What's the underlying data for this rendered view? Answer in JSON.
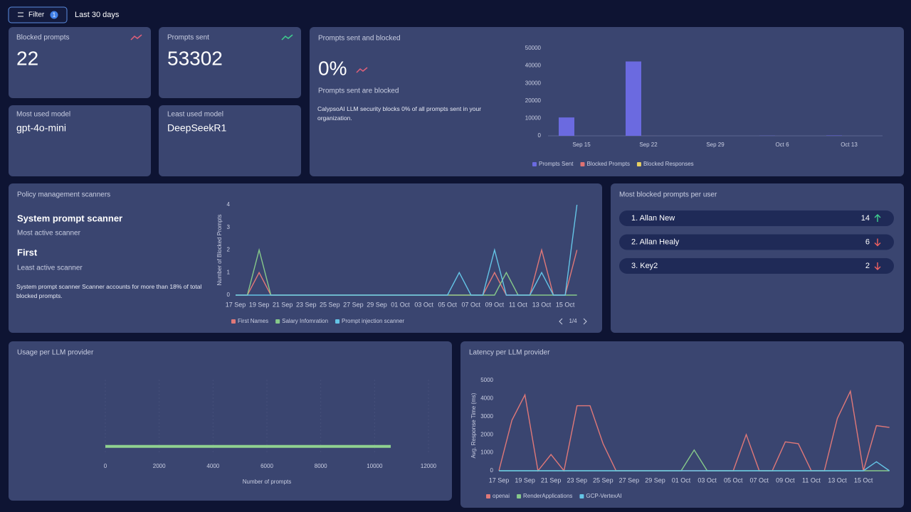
{
  "header": {
    "filter": "Filter",
    "filter_count": 1,
    "range": "Last 30 days"
  },
  "stats": [
    {
      "label": "Blocked prompts",
      "value": 22,
      "trend": "up",
      "trend_color": "#e0607a"
    },
    {
      "label": "Prompts sent",
      "value": 53302,
      "trend": "up",
      "trend_color": "#3ecf8e"
    },
    {
      "label": "Most used model",
      "value": "gpt-4o-mini"
    },
    {
      "label": "Least used model",
      "value": "DeepSeekR1"
    }
  ],
  "prompts_panel": {
    "title": "Prompts sent and blocked",
    "rate": "0%",
    "rate_caption": "Prompts sent are blocked",
    "description": "CalypsoAI LLM security blocks 0% of all prompts sent in your organization.",
    "chart": {
      "type": "bar",
      "categories": [
        "Sep 15",
        "Sep 22",
        "Sep 29",
        "Oct 6",
        "Oct 13"
      ],
      "series": [
        {
          "name": "Prompts Sent",
          "color": "#6b6ae0",
          "values": [
            10500,
            42500,
            0,
            100,
            200
          ]
        },
        {
          "name": "Blocked Prompts",
          "color": "#e07272",
          "values": [
            2,
            12,
            0,
            3,
            5
          ]
        },
        {
          "name": "Blocked Responses",
          "color": "#e8d062",
          "values": [
            0,
            0,
            0,
            0,
            0
          ]
        }
      ],
      "ylim": [
        0,
        50000
      ],
      "yticks": [
        0,
        10000,
        20000,
        30000,
        40000,
        50000
      ],
      "legend": "bottom"
    }
  },
  "policy_panel": {
    "title": "Policy management scanners",
    "most_active": "System prompt scanner",
    "most_active_caption": "Most active scanner",
    "least_active": "First",
    "least_active_caption": "Least active scanner",
    "description": "System prompt scanner Scanner accounts for more than 18% of total blocked prompts.",
    "pager": "1/4",
    "chart": {
      "type": "line",
      "y_label": "Number of Blocked Prompts",
      "categories": [
        "17 Sep",
        null,
        "19 Sep",
        null,
        "21 Sep",
        null,
        "23 Sep",
        null,
        "25 Sep",
        null,
        "27 Sep",
        null,
        "29 Sep",
        null,
        "01 Oct",
        null,
        "03 Oct",
        null,
        "05 Oct",
        null,
        "07 Oct",
        null,
        "09 Oct",
        null,
        "11 Oct",
        null,
        "13 Oct",
        null,
        "15 Oct",
        null
      ],
      "series": [
        {
          "name": "First Names",
          "color": "#e07878",
          "values": [
            0,
            0,
            1,
            0,
            0,
            0,
            0,
            0,
            0,
            0,
            0,
            0,
            0,
            0,
            0,
            0,
            0,
            0,
            0,
            0,
            0,
            0,
            1,
            0,
            0,
            0,
            2,
            0,
            0,
            2
          ]
        },
        {
          "name": "Salary Infomration",
          "color": "#86c98a",
          "values": [
            0,
            0,
            2,
            0,
            0,
            0,
            0,
            0,
            0,
            0,
            0,
            0,
            0,
            0,
            0,
            0,
            0,
            0,
            0,
            0,
            0,
            0,
            0,
            1,
            0,
            0,
            0,
            0,
            0,
            0
          ]
        },
        {
          "name": "Prompt injection scanner",
          "color": "#64c4e6",
          "values": [
            0,
            0,
            0,
            0,
            0,
            0,
            0,
            0,
            0,
            0,
            0,
            0,
            0,
            0,
            0,
            0,
            0,
            0,
            0,
            1,
            0,
            0,
            2,
            0,
            0,
            0,
            1,
            0,
            0,
            4
          ]
        }
      ],
      "ylim": [
        0,
        4
      ],
      "yticks": [
        0,
        1,
        2,
        3,
        4
      ],
      "legend": "bottom"
    }
  },
  "users_panel": {
    "title": "Most blocked prompts per user",
    "users": [
      {
        "name": "1. Allan New",
        "value": 14,
        "trend": "up",
        "trend_color": "#3ecf8e"
      },
      {
        "name": "2. Allan Healy",
        "value": 6,
        "trend": "down",
        "trend_color": "#f06060"
      },
      {
        "name": "3. Key2",
        "value": 2,
        "trend": "down",
        "trend_color": "#f06060"
      }
    ]
  },
  "usage_panel": {
    "title": "Usage per LLM provider",
    "chart": {
      "type": "hbar",
      "x_label": "Number of prompts",
      "categories": [
        null,
        null,
        null,
        null,
        null,
        null,
        null,
        null,
        null,
        null,
        null,
        null,
        null,
        null
      ],
      "values": [
        0,
        0,
        0,
        0,
        0,
        0,
        0,
        0,
        0,
        0,
        0,
        0,
        10600,
        0
      ],
      "color": "#8fd18f",
      "xlim": [
        0,
        12000
      ],
      "xticks": [
        0,
        2000,
        4000,
        6000,
        8000,
        10000,
        12000
      ],
      "grid": true
    }
  },
  "latency_panel": {
    "title": "Latency per LLM provider",
    "chart": {
      "type": "line",
      "y_label": "Avg. Response Time (ms)",
      "categories": [
        "17 Sep",
        null,
        "19 Sep",
        null,
        "21 Sep",
        null,
        "23 Sep",
        null,
        "25 Sep",
        null,
        "27 Sep",
        null,
        "29 Sep",
        null,
        "01 Oct",
        null,
        "03 Oct",
        null,
        "05 Oct",
        null,
        "07 Oct",
        null,
        "09 Oct",
        null,
        "11 Oct",
        null,
        "13 Oct",
        null,
        "15 Oct",
        null,
        null
      ],
      "series": [
        {
          "name": "openai",
          "color": "#e07878",
          "values": [
            0,
            2800,
            4200,
            0,
            900,
            0,
            3600,
            3600,
            1500,
            0,
            0,
            0,
            0,
            0,
            0,
            0,
            0,
            0,
            0,
            2000,
            0,
            0,
            1600,
            1500,
            0,
            0,
            2900,
            4400,
            0,
            2500,
            2400
          ]
        },
        {
          "name": "RenderApplications",
          "color": "#86c98a",
          "values": [
            0,
            0,
            0,
            0,
            0,
            0,
            0,
            0,
            0,
            0,
            0,
            0,
            0,
            0,
            0,
            1150,
            0,
            0,
            0,
            0,
            0,
            0,
            0,
            0,
            0,
            0,
            0,
            0,
            0,
            0,
            0
          ]
        },
        {
          "name": "GCP-VertexAI",
          "color": "#64c4e6",
          "values": [
            0,
            0,
            0,
            0,
            0,
            0,
            0,
            0,
            0,
            0,
            0,
            0,
            0,
            0,
            0,
            0,
            0,
            0,
            0,
            0,
            0,
            0,
            0,
            0,
            0,
            0,
            0,
            0,
            0,
            500,
            0
          ]
        }
      ],
      "ylim": [
        0,
        5000
      ],
      "yticks": [
        0,
        1000,
        2000,
        3000,
        4000,
        5000
      ],
      "legend": "bottom"
    }
  }
}
